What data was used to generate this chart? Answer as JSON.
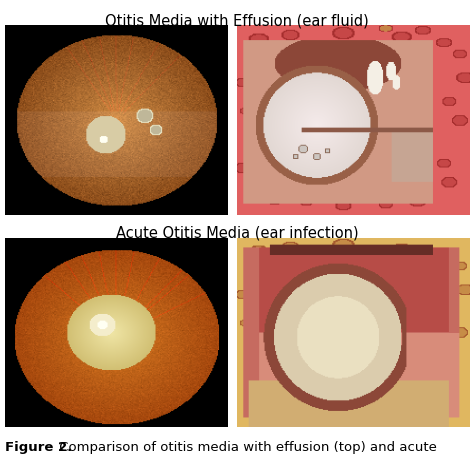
{
  "title_top": "Otitis Media with Effusion (ear fluid)",
  "title_middle": "Acute Otitis Media (ear infection)",
  "caption_bold": "Figure 2.",
  "caption_regular": " Comparison of otitis media with effusion (top) and acute",
  "bg_color": "#ffffff",
  "title_fontsize": 10.5,
  "caption_fontsize": 9.5,
  "fig_width": 4.74,
  "fig_height": 4.62,
  "dpi": 100
}
